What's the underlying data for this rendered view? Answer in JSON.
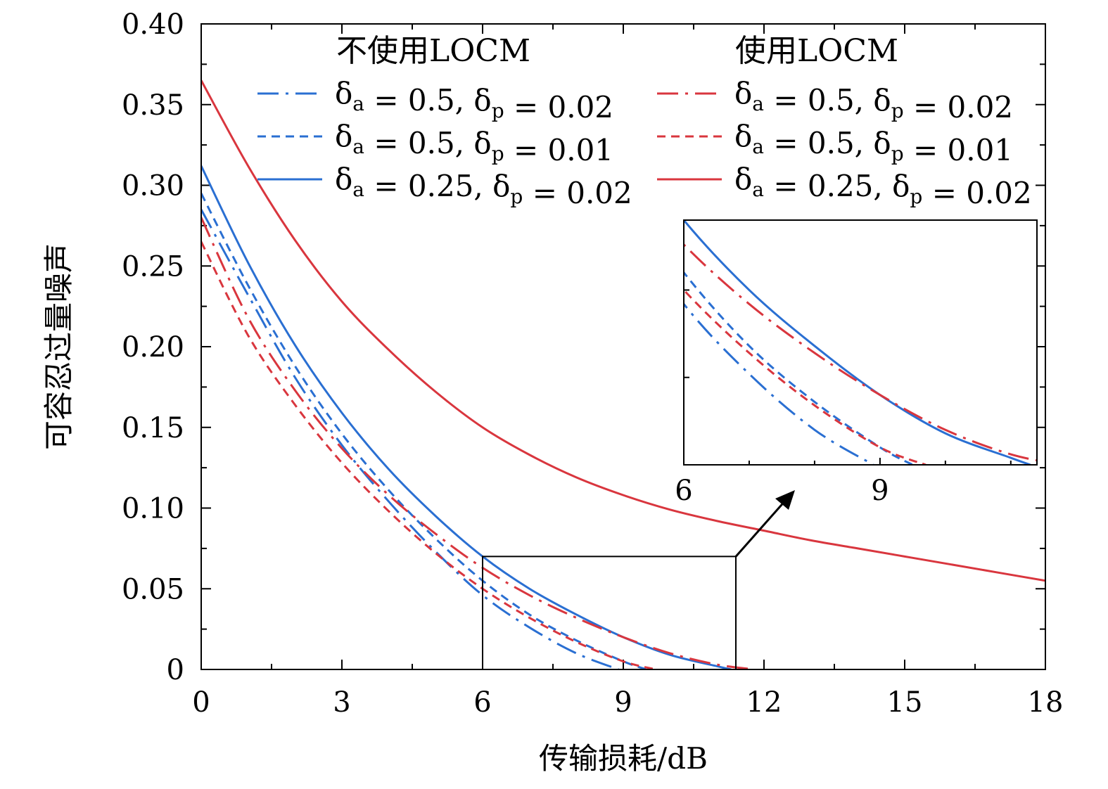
{
  "chart_data": {
    "type": "line",
    "title": "",
    "xlabel": "传输损耗/dB",
    "ylabel": "可容忍过量噪声",
    "xlim": [
      0,
      18
    ],
    "ylim": [
      0,
      0.4
    ],
    "xticks": [
      0,
      3,
      6,
      9,
      12,
      15,
      18
    ],
    "xtick_labels": [
      "0",
      "3",
      "6",
      "9",
      "12",
      "15",
      "18"
    ],
    "yticks": [
      0,
      0.05,
      0.1,
      0.15,
      0.2,
      0.25,
      0.3,
      0.35,
      0.4
    ],
    "ytick_labels": [
      "0",
      "0.05",
      "0.10",
      "0.15",
      "0.20",
      "0.25",
      "0.30",
      "0.35",
      "0.40"
    ],
    "legend_groups": [
      "不使用LOCM",
      "使用LOCM"
    ],
    "legend_placement": "top",
    "colors": {
      "without_locm": "#2a6fd2",
      "with_locm": "#d9363e"
    },
    "series": [
      {
        "group": "不使用LOCM",
        "name": "δa = 0.5, δp = 0.02",
        "delta_a": "0.5",
        "delta_p": "0.02",
        "style": "dashdot",
        "color": "#2a6fd2",
        "x": [
          0,
          1,
          2,
          3,
          4,
          5,
          6,
          7,
          8,
          8.9
        ],
        "y": [
          0.285,
          0.232,
          0.181,
          0.139,
          0.104,
          0.073,
          0.046,
          0.026,
          0.01,
          0.0
        ]
      },
      {
        "group": "不使用LOCM",
        "name": "δa = 0.5, δp = 0.01",
        "delta_a": "0.5",
        "delta_p": "0.01",
        "style": "dashed",
        "color": "#2a6fd2",
        "x": [
          0,
          1,
          2,
          3,
          4,
          5,
          6,
          7,
          8,
          9,
          9.5
        ],
        "y": [
          0.295,
          0.238,
          0.188,
          0.146,
          0.111,
          0.081,
          0.055,
          0.034,
          0.018,
          0.005,
          0.0
        ]
      },
      {
        "group": "不使用LOCM",
        "name": "δa = 0.25, δp = 0.02",
        "delta_a": "0.25",
        "delta_p": "0.02",
        "style": "solid",
        "color": "#2a6fd2",
        "x": [
          0,
          1,
          2,
          3,
          4,
          5,
          6,
          7,
          8,
          9,
          10,
          11,
          11.3
        ],
        "y": [
          0.312,
          0.252,
          0.201,
          0.159,
          0.124,
          0.095,
          0.07,
          0.05,
          0.034,
          0.02,
          0.009,
          0.002,
          0.0
        ]
      },
      {
        "group": "使用LOCM",
        "name": "δa = 0.5, δp = 0.02",
        "delta_a": "0.5",
        "delta_p": "0.02",
        "style": "dashdot",
        "color": "#d9363e",
        "x": [
          0,
          1,
          2,
          3,
          4,
          5,
          6,
          7,
          8,
          9,
          10,
          11,
          11.8
        ],
        "y": [
          0.28,
          0.218,
          0.173,
          0.137,
          0.108,
          0.084,
          0.063,
          0.046,
          0.032,
          0.02,
          0.01,
          0.003,
          0.0
        ]
      },
      {
        "group": "使用LOCM",
        "name": "δa = 0.5, δp = 0.01",
        "delta_a": "0.5",
        "delta_p": "0.01",
        "style": "dashed",
        "color": "#d9363e",
        "x": [
          0,
          1,
          2,
          3,
          4,
          5,
          6,
          7,
          8,
          9,
          9.7
        ],
        "y": [
          0.265,
          0.207,
          0.164,
          0.128,
          0.098,
          0.072,
          0.05,
          0.032,
          0.017,
          0.005,
          0.0
        ]
      },
      {
        "group": "使用LOCM",
        "name": "δa = 0.25, δp = 0.02",
        "delta_a": "0.25",
        "delta_p": "0.02",
        "style": "solid",
        "color": "#d9363e",
        "x": [
          0,
          1,
          2,
          3,
          4,
          5,
          6,
          7,
          8,
          9,
          10,
          11,
          12,
          13,
          14,
          15,
          16,
          17,
          18
        ],
        "y": [
          0.365,
          0.312,
          0.266,
          0.228,
          0.198,
          0.172,
          0.15,
          0.133,
          0.119,
          0.108,
          0.099,
          0.092,
          0.086,
          0.08,
          0.075,
          0.07,
          0.065,
          0.06,
          0.055
        ]
      }
    ],
    "zoom_region": {
      "xlim": [
        6,
        11.4
      ],
      "ylim": [
        0,
        0.07
      ]
    },
    "inset": {
      "xlim": [
        6,
        11.4
      ],
      "ylim": [
        0,
        0.07
      ],
      "xticks": [
        6,
        9
      ],
      "xtick_labels": [
        "6",
        "9"
      ]
    }
  }
}
